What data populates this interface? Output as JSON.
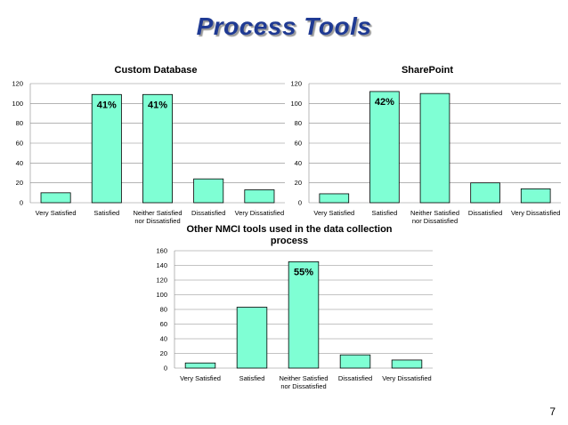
{
  "slide": {
    "title": "Process Tools",
    "page_number": "7"
  },
  "colors": {
    "bar": "#7fffd4",
    "bar_stroke": "#000000",
    "grid": "#888888",
    "title": "#1f3a93"
  },
  "chart_data": [
    {
      "type": "bar",
      "title": "Custom Database",
      "categories": [
        "Very Satisfied",
        "Satisfied",
        "Neither Satisfied nor Dissatisfied",
        "Dissatisfied",
        "Very Dissatisfied"
      ],
      "values": [
        10,
        109,
        109,
        24,
        13
      ],
      "ylim": [
        0,
        120
      ],
      "yticks": [
        0,
        20,
        40,
        60,
        80,
        100,
        120
      ],
      "annotations": [
        {
          "category_index": 1,
          "text": "41%"
        },
        {
          "category_index": 2,
          "text": "41%"
        }
      ],
      "grid": true
    },
    {
      "type": "bar",
      "title": "SharePoint",
      "categories": [
        "Very Satisfied",
        "Satisfied",
        "Neither Satisfied nor Dissatisfied",
        "Dissatisfied",
        "Very Dissatisfied"
      ],
      "values": [
        9,
        112,
        110,
        20,
        14
      ],
      "ylim": [
        0,
        120
      ],
      "yticks": [
        0,
        20,
        40,
        60,
        80,
        100,
        120
      ],
      "annotations": [
        {
          "category_index": 1,
          "text": "42%"
        }
      ],
      "grid": true
    },
    {
      "type": "bar",
      "title": "Other NMCI tools used in the data collection process",
      "categories": [
        "Very Satisfied",
        "Satisfied",
        "Neither Satisfied nor Dissatisfied",
        "Dissatisfied",
        "Very Dissatisfied"
      ],
      "values": [
        7,
        83,
        145,
        18,
        11
      ],
      "ylim": [
        0,
        160
      ],
      "yticks": [
        0,
        20,
        40,
        60,
        80,
        100,
        120,
        140,
        160
      ],
      "annotations": [
        {
          "category_index": 2,
          "text": "55%"
        }
      ],
      "grid": true
    }
  ]
}
